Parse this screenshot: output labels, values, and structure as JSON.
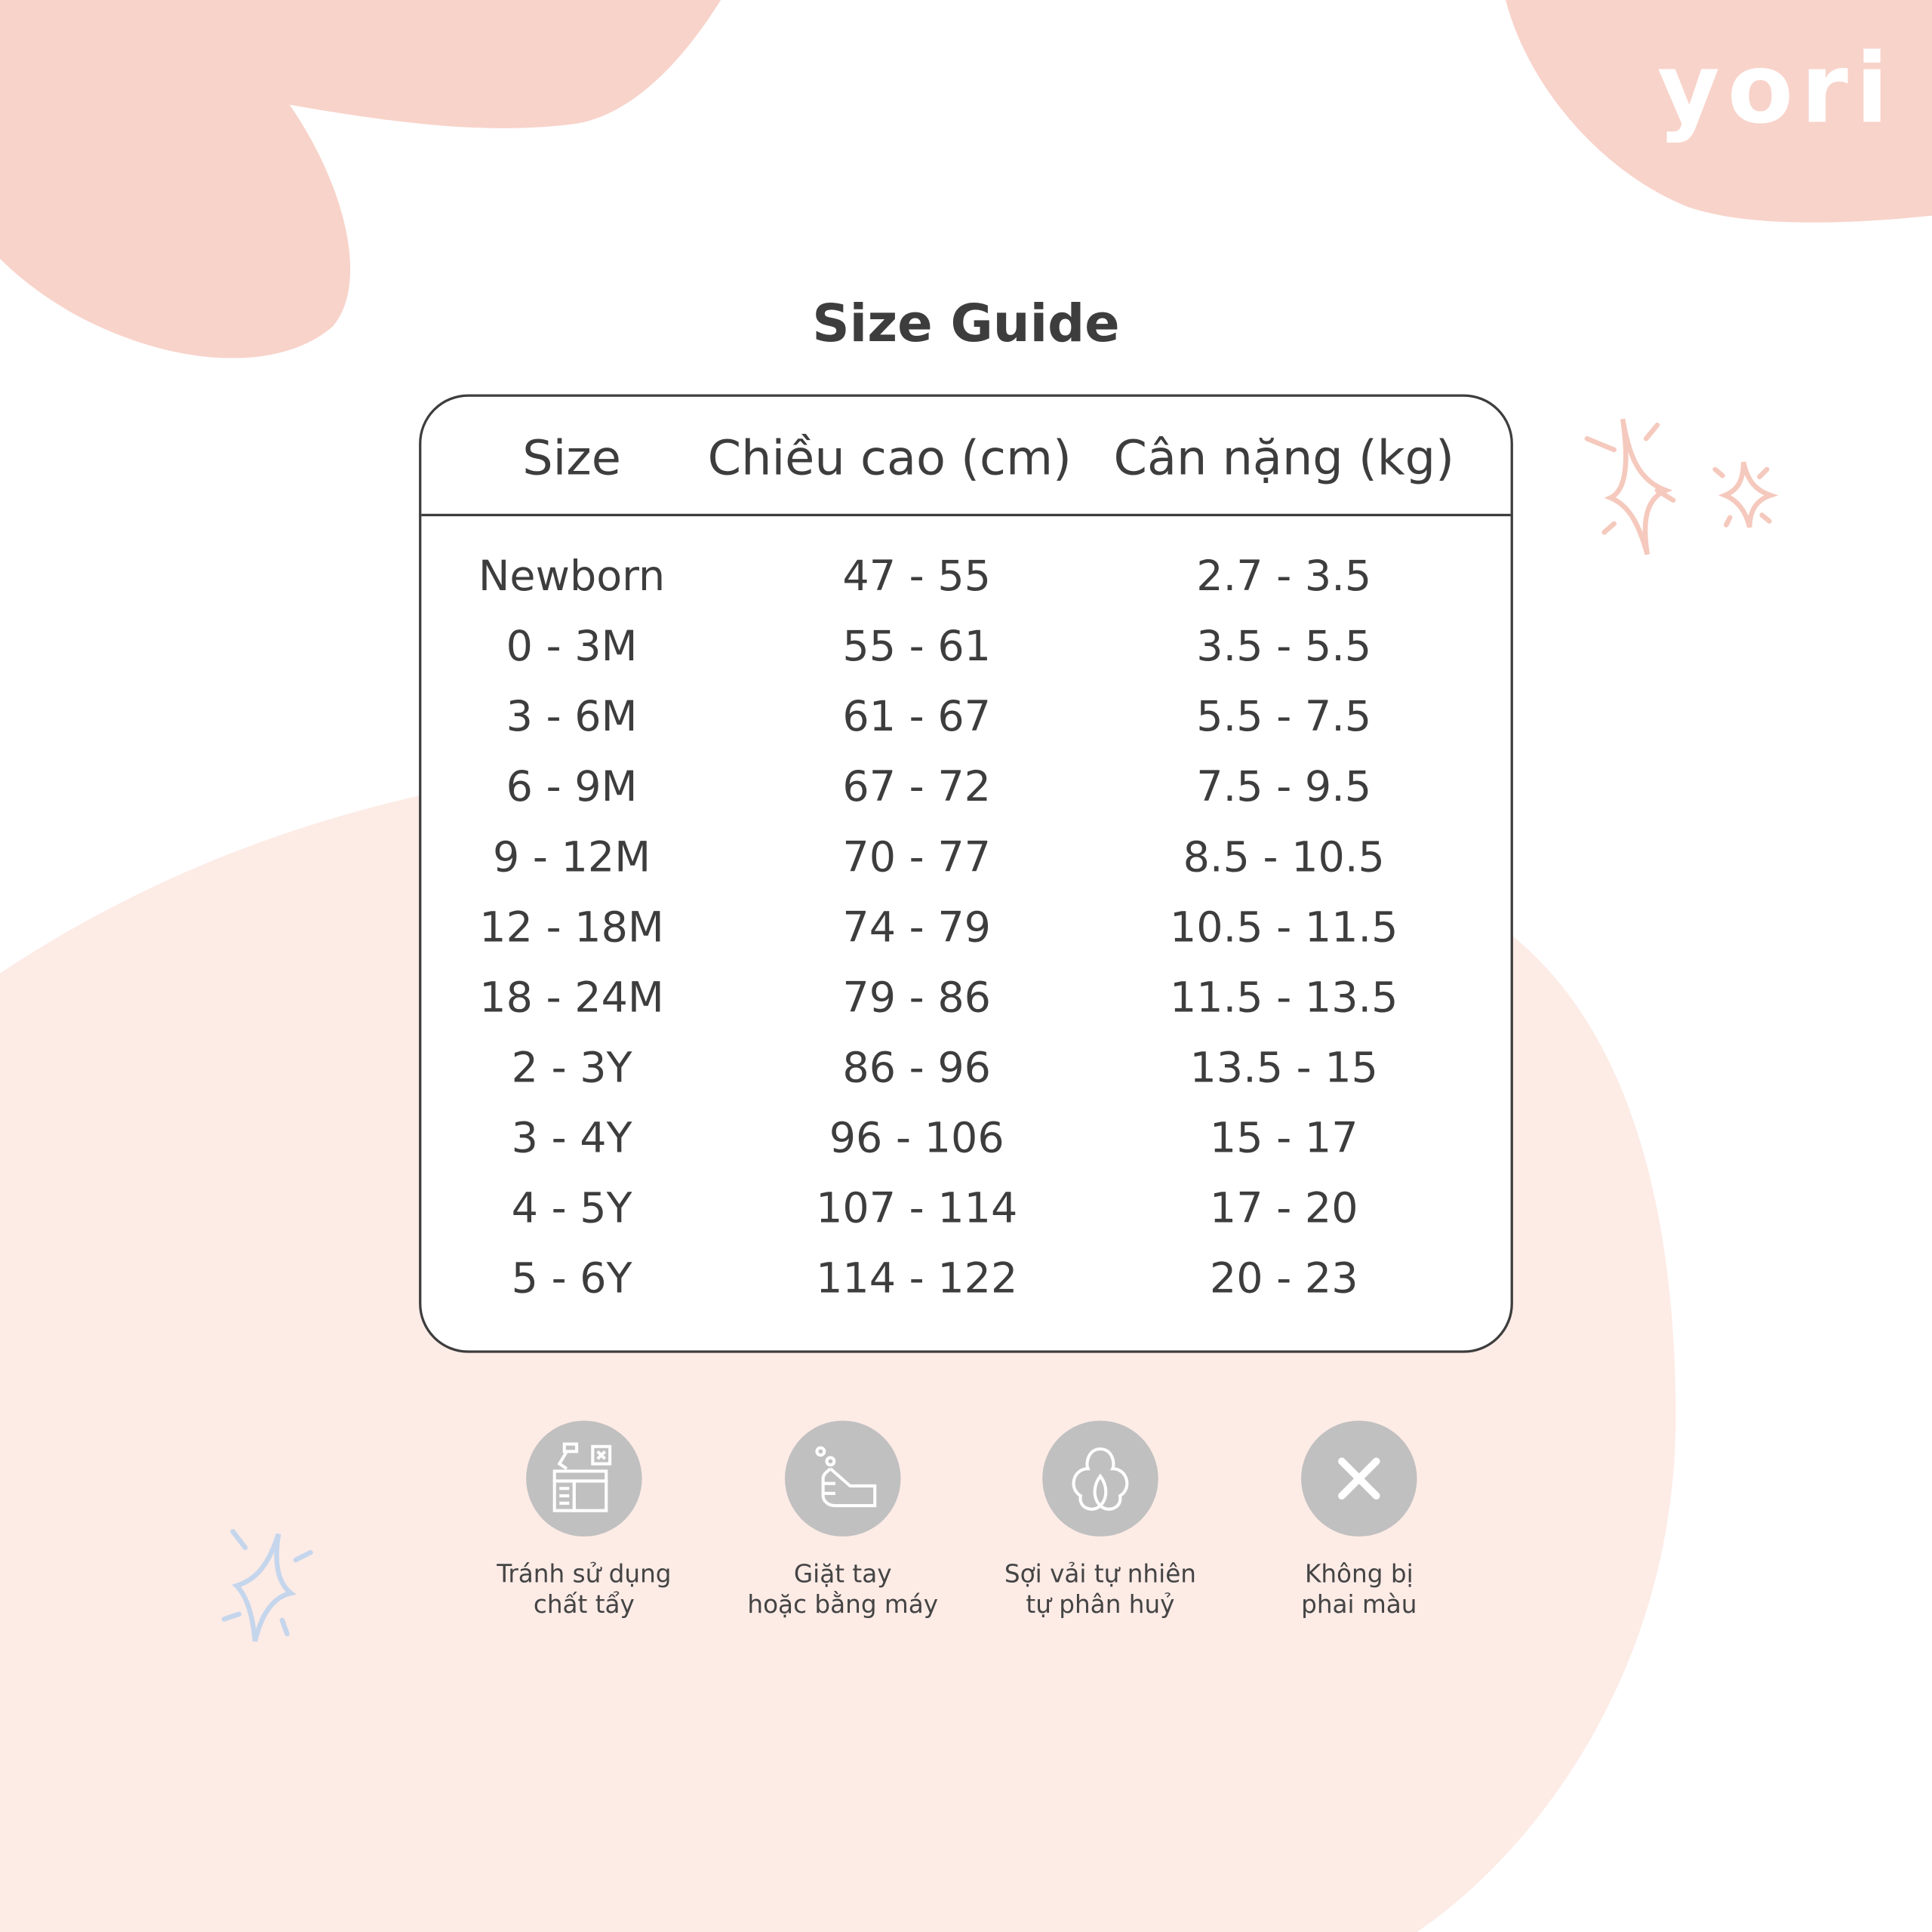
{
  "brand": {
    "logo_text": "yori"
  },
  "colors": {
    "blob_dark": "#f8d3ca",
    "blob_light": "#fdebe6",
    "text": "#3d3d3d",
    "icon_circle": "#c0c0c0",
    "sparkle_pink": "#f5c9bd",
    "sparkle_blue": "#c5d6ec"
  },
  "title": "Size Guide",
  "table": {
    "headers": [
      "Size",
      "Chiều cao (cm)",
      "Cân nặng (kg)"
    ],
    "rows": [
      [
        "Newborn",
        "47 - 55",
        "2.7 - 3.5"
      ],
      [
        "0 - 3M",
        "55 - 61",
        "3.5 - 5.5"
      ],
      [
        "3 - 6M",
        "61 - 67",
        "5.5 - 7.5"
      ],
      [
        "6 - 9M",
        "67 - 72",
        "7.5 - 9.5"
      ],
      [
        "9 - 12M",
        "70 - 77",
        "8.5 - 10.5"
      ],
      [
        "12 - 18M",
        "74 - 79",
        "10.5 - 11.5"
      ],
      [
        "18 - 24M",
        "79 - 86",
        "11.5 - 13.5"
      ],
      [
        "2 - 3Y",
        "86 - 96",
        "13.5 - 15"
      ],
      [
        "3 - 4Y",
        "96 - 106",
        "15 - 17"
      ],
      [
        "4 - 5Y",
        "107 - 114",
        "17 - 20"
      ],
      [
        "5 - 6Y",
        "114 - 122",
        "20 - 23"
      ]
    ]
  },
  "features": [
    {
      "icon": "no-bleach-icon",
      "line1": "Tránh sử dụng",
      "line2": "chất tẩy"
    },
    {
      "icon": "hand-wash-icon",
      "line1": "Giặt tay",
      "line2": "hoặc bằng máy"
    },
    {
      "icon": "cotton-icon",
      "line1": "Sợi vải tự nhiên",
      "line2": "tự phân huỷ"
    },
    {
      "icon": "x-icon",
      "line1": "Không bị",
      "line2": "phai màu"
    }
  ]
}
